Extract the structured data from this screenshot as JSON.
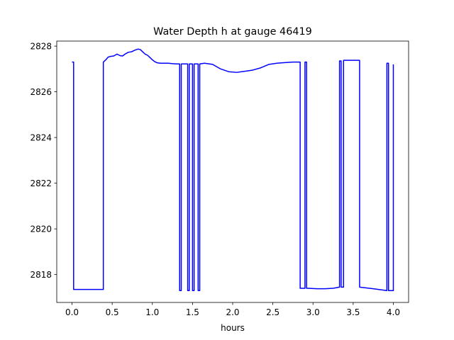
{
  "chart_data": {
    "type": "line",
    "title": "Water Depth h at gauge 46419",
    "xlabel": "hours",
    "ylabel": "",
    "xlim": [
      -0.19,
      4.19
    ],
    "ylim": [
      2816.78,
      2828.22
    ],
    "xticks": [
      0.0,
      0.5,
      1.0,
      1.5,
      2.0,
      2.5,
      3.0,
      3.5,
      4.0
    ],
    "xtick_labels": [
      "0.0",
      "0.5",
      "1.0",
      "1.5",
      "2.0",
      "2.5",
      "3.0",
      "3.5",
      "4.0"
    ],
    "yticks": [
      2818,
      2820,
      2822,
      2824,
      2826,
      2828
    ],
    "ytick_labels": [
      "2818",
      "2820",
      "2822",
      "2824",
      "2826",
      "2828"
    ],
    "grid": false,
    "series": [
      {
        "color": "#0000ff",
        "x": [
          0.0,
          0.02,
          0.02,
          0.39,
          0.39,
          0.42,
          0.45,
          0.48,
          0.52,
          0.56,
          0.6,
          0.63,
          0.66,
          0.7,
          0.74,
          0.78,
          0.82,
          0.85,
          0.88,
          0.91,
          0.94,
          0.97,
          1.0,
          1.03,
          1.06,
          1.1,
          1.15,
          1.2,
          1.25,
          1.3,
          1.34,
          1.34,
          1.36,
          1.36,
          1.44,
          1.44,
          1.46,
          1.46,
          1.5,
          1.5,
          1.52,
          1.52,
          1.57,
          1.57,
          1.59,
          1.59,
          1.65,
          1.75,
          1.85,
          1.95,
          2.05,
          2.15,
          2.25,
          2.35,
          2.45,
          2.55,
          2.65,
          2.75,
          2.84,
          2.84,
          2.9,
          2.9,
          2.92,
          2.92,
          2.94,
          2.94,
          3.05,
          3.15,
          3.25,
          3.33,
          3.33,
          3.35,
          3.35,
          3.38,
          3.38,
          3.42,
          3.42,
          3.58,
          3.58,
          3.75,
          3.92,
          3.92,
          3.94,
          3.94,
          4.0,
          4.0
        ],
        "y": [
          2827.3,
          2827.3,
          2817.35,
          2817.35,
          2827.3,
          2827.4,
          2827.52,
          2827.55,
          2827.57,
          2827.65,
          2827.58,
          2827.57,
          2827.65,
          2827.73,
          2827.75,
          2827.82,
          2827.87,
          2827.85,
          2827.75,
          2827.65,
          2827.6,
          2827.5,
          2827.4,
          2827.32,
          2827.27,
          2827.25,
          2827.25,
          2827.25,
          2827.23,
          2827.22,
          2827.22,
          2817.3,
          2817.3,
          2827.22,
          2827.22,
          2817.3,
          2817.3,
          2827.22,
          2827.22,
          2817.3,
          2817.3,
          2827.22,
          2827.22,
          2817.3,
          2817.3,
          2827.22,
          2827.25,
          2827.2,
          2827.0,
          2826.88,
          2826.85,
          2826.9,
          2826.95,
          2827.05,
          2827.2,
          2827.25,
          2827.28,
          2827.3,
          2827.3,
          2817.4,
          2817.4,
          2827.3,
          2827.3,
          2817.4,
          2817.4,
          2817.4,
          2817.38,
          2817.38,
          2817.4,
          2817.45,
          2827.35,
          2827.35,
          2817.45,
          2817.45,
          2827.38,
          2827.38,
          2827.38,
          2827.38,
          2817.45,
          2817.38,
          2817.3,
          2827.25,
          2827.25,
          2817.3,
          2817.3,
          2827.2
        ]
      }
    ]
  }
}
